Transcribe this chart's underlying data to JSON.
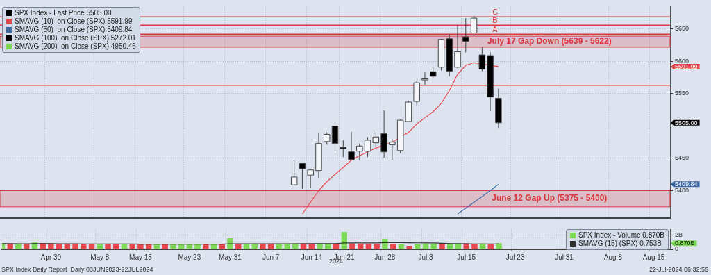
{
  "chart_data": [
    {
      "type": "candlestick",
      "series": [
        {
          "name": "SPX Index - Last Price 5505.00",
          "color": "#000000",
          "ohlc": [
            null,
            null,
            null,
            null,
            null,
            null,
            null,
            null,
            null,
            null,
            null,
            null,
            null,
            null,
            null,
            null,
            null,
            null,
            null,
            null,
            null,
            null,
            null,
            null,
            null,
            null,
            null,
            null,
            null,
            null,
            null,
            null,
            null,
            null,
            null,
            null,
            [
              5409,
              5447,
              5409,
              5421
            ],
            [
              5442,
              5442,
              5403,
              5434
            ],
            [
              5424,
              5432,
              5404,
              5432
            ],
            [
              5431,
              5489,
              5420,
              5473
            ],
            [
              5476,
              5490,
              5471,
              5487
            ],
            [
              5500,
              5506,
              5456,
              5473
            ],
            [
              5467,
              5478,
              5452,
              5465
            ],
            [
              5460,
              5491,
              5448,
              5448
            ],
            [
              5461,
              5473,
              5447,
              5469
            ],
            [
              5461,
              5483,
              5452,
              5478
            ],
            [
              5474,
              5491,
              5468,
              5483
            ],
            [
              5488,
              5524,
              5451,
              5460
            ],
            [
              5471,
              5480,
              5447,
              5475
            ],
            [
              5462,
              5510,
              5458,
              5509
            ],
            [
              5507,
              5539,
              5507,
              5537
            ],
            [
              5538,
              5570,
              5532,
              5567
            ],
            [
              5572,
              5583,
              5563,
              5573
            ],
            [
              5584,
              5591,
              5575,
              5577
            ],
            [
              5591,
              5635,
              5586,
              5634
            ],
            [
              5635,
              5642,
              5577,
              5585
            ],
            [
              5591,
              5656,
              5590,
              5615
            ],
            [
              5638,
              5667,
              5614,
              5631
            ],
            [
              5644,
              5670,
              5639,
              5667
            ],
            [
              5610,
              5622,
              5585,
              5588
            ],
            [
              5609,
              5614,
              5523,
              5545
            ],
            [
              5543,
              5558,
              5497,
              5505
            ],
            null,
            null,
            null,
            null,
            null,
            null,
            null,
            null,
            null,
            null,
            null,
            null,
            null,
            null,
            null,
            null,
            null,
            null,
            null,
            null,
            null
          ],
          "colors": [
            null,
            null,
            null,
            null,
            null,
            null,
            null,
            null,
            null,
            null,
            null,
            null,
            null,
            null,
            null,
            null,
            null,
            null,
            null,
            null,
            null,
            null,
            null,
            null,
            null,
            null,
            null,
            null,
            null,
            null,
            null,
            null,
            null,
            null,
            null,
            null,
            "#f4f6fa",
            "#000000",
            "#f4f6fa",
            "#f4f6fa",
            "#f4f6fa",
            "#000000",
            "#000000",
            "#000000",
            "#f4f6fa",
            "#f4f6fa",
            "#f4f6fa",
            "#000000",
            "#f4f6fa",
            "#f4f6fa",
            "#f4f6fa",
            "#f4f6fa",
            "#f4f6fa",
            "#000000",
            "#f4f6fa",
            "#000000",
            "#f4f6fa",
            "#000000",
            "#f4f6fa",
            "#000000",
            "#000000",
            "#000000",
            null,
            null,
            null,
            null,
            null,
            null,
            null,
            null,
            null,
            null,
            null,
            null,
            null,
            null,
            null,
            null,
            null,
            null,
            null,
            null,
            null
          ]
        },
        {
          "name": "SMAVG (10)  on Close (SPX) 5591.99",
          "type": "line",
          "color": "#e8484d",
          "values": [
            null,
            null,
            null,
            null,
            null,
            null,
            null,
            null,
            null,
            null,
            null,
            null,
            null,
            null,
            null,
            null,
            null,
            null,
            null,
            null,
            null,
            null,
            null,
            null,
            null,
            null,
            null,
            null,
            null,
            null,
            null,
            null,
            null,
            null,
            null,
            null,
            null,
            5364,
            5382,
            5400,
            5414,
            5425,
            5436,
            5447,
            5454,
            5460,
            5466,
            null,
            5475,
            null,
            5490,
            5503,
            5513,
            5522,
            5535,
            5555,
            5580,
            5594,
            5598,
            null,
            null,
            5591.99,
            null,
            null,
            null,
            null,
            null,
            null,
            null,
            null,
            null,
            null,
            null,
            null,
            null,
            null,
            null,
            null,
            null,
            null,
            null,
            null,
            null
          ]
        },
        {
          "name": "SMAVG (50)  on Close (SPX) 5409.84",
          "type": "line",
          "color": "#3d6aa6",
          "values": [
            null,
            null,
            null,
            null,
            null,
            null,
            null,
            null,
            null,
            null,
            null,
            null,
            null,
            null,
            null,
            null,
            null,
            null,
            null,
            null,
            null,
            null,
            null,
            null,
            null,
            null,
            null,
            null,
            null,
            null,
            null,
            null,
            null,
            null,
            null,
            null,
            null,
            null,
            null,
            null,
            null,
            null,
            null,
            null,
            null,
            null,
            null,
            null,
            null,
            null,
            null,
            null,
            null,
            null,
            null,
            null,
            5364,
            5373,
            5382,
            5391,
            5400,
            5409.84,
            null,
            null,
            null,
            null,
            null,
            null,
            null,
            null,
            null,
            null,
            null,
            null,
            null,
            null,
            null,
            null,
            null,
            null,
            null,
            null,
            null
          ]
        },
        {
          "name": "SMAVG (100)  on Close (SPX) 5272.01",
          "type": "line",
          "color": "#000000",
          "values": [
            null,
            null,
            null,
            null,
            null,
            null,
            null,
            null,
            null,
            null,
            null,
            null,
            null,
            null,
            null,
            null,
            null,
            null,
            null,
            null,
            null,
            null,
            null,
            null,
            null,
            null,
            null,
            null,
            null,
            null,
            null,
            null,
            null,
            null,
            null,
            null,
            null,
            null,
            null,
            null,
            null,
            null,
            null,
            null,
            null,
            null,
            null,
            null,
            null,
            null,
            null,
            null,
            null,
            null,
            null,
            null,
            null,
            null,
            null,
            null,
            null,
            null,
            null,
            null,
            null,
            null,
            null,
            null,
            null,
            null,
            null,
            null,
            null,
            null,
            null,
            null,
            null,
            null,
            null,
            null,
            null,
            null,
            null
          ]
        },
        {
          "name": "SMAVG (200)  on Close (SPX) 4950.46",
          "type": "line",
          "color": "#7ed957",
          "values": [
            null,
            null,
            null,
            null,
            null,
            null,
            null,
            null,
            null,
            null,
            null,
            null,
            null,
            null,
            null,
            null,
            null,
            null,
            null,
            null,
            null,
            null,
            null,
            null,
            null,
            null,
            null,
            null,
            null,
            null,
            null,
            null,
            null,
            null,
            null,
            null,
            null,
            null,
            null,
            null,
            null,
            null,
            null,
            null,
            null,
            null,
            null,
            null,
            null,
            null,
            null,
            null,
            null,
            null,
            null,
            null,
            null,
            null,
            null,
            null,
            null,
            null,
            null,
            null,
            null,
            null,
            null,
            null,
            null,
            null,
            null,
            null,
            null,
            null,
            null,
            null,
            null,
            null,
            null,
            null,
            null,
            null,
            null
          ]
        }
      ],
      "ylim": [
        5358,
        5686
      ],
      "yticks": [
        5400,
        {
          "value": 5409.84,
          "label": "5409.84"
        },
        5450,
        {
          "value": 5500,
          "label": null
        },
        {
          "value": 5505,
          "label": "5505.00"
        },
        5550,
        {
          "value": 5591.99,
          "label": "5591.99"
        },
        5600,
        5650
      ],
      "grid": true,
      "legend": "top left",
      "marker": "none",
      "tick_labels": "y",
      "ref_lines": [
        {
          "axis": "y",
          "value": 5563,
          "color": "#d9383e"
        },
        {
          "axis": "y",
          "value": 5642,
          "label": "A",
          "color": "#d9383e"
        },
        {
          "axis": "y",
          "value": 5656,
          "label": "B",
          "color": "#d9383e"
        },
        {
          "axis": "y",
          "value": 5669,
          "label": "C",
          "color": "#d9383e"
        }
      ],
      "bands": [
        {
          "axis": "y",
          "from": 5622,
          "to": 5639,
          "label": "July 17 Gap Down (5639 - 5622)",
          "color": "#d9383e"
        },
        {
          "axis": "y",
          "from": 5375,
          "to": 5400,
          "label": "June 12 Gap Up (5375 - 5400)",
          "color": "#d9383e"
        }
      ]
    },
    {
      "type": "bar",
      "categories": [
        null,
        null,
        null,
        null,
        null,
        null,
        "Apr 30",
        null,
        null,
        null,
        null,
        null,
        "May 8",
        null,
        null,
        null,
        null,
        "May 15",
        null,
        null,
        null,
        null,
        null,
        "May 23",
        null,
        null,
        null,
        null,
        "May 31",
        null,
        null,
        null,
        null,
        "Jun 7",
        null,
        null,
        null,
        null,
        "Jun 14",
        null,
        null,
        null,
        "Jun 21",
        null,
        null,
        null,
        null,
        "Jun 28",
        null,
        null,
        null,
        null,
        "Jul 8",
        null,
        null,
        null,
        null,
        "Jul 15",
        null,
        null,
        null,
        null,
        null,
        "Jul 23",
        null,
        null,
        null,
        null,
        null,
        "Jul 31",
        null,
        null,
        null,
        null,
        null,
        "Aug 8",
        null,
        null,
        null,
        null,
        "Aug 15",
        null,
        null
      ],
      "series": [
        {
          "name": "SPX Index - Volume 0.870B",
          "color": "#7ed957",
          "values": [
            0.85,
            0.75,
            0.8,
            0.8,
            1.0,
            0.9,
            0.85,
            0.8,
            0.8,
            0.75,
            0.7,
            0.7,
            0.75,
            0.7,
            0.7,
            0.7,
            0.75,
            0.75,
            0.7,
            0.7,
            0.75,
            0.7,
            0.7,
            0.75,
            0.75,
            0.8,
            0.75,
            0.7,
            1.6,
            0.75,
            0.75,
            0.8,
            0.8,
            0.8,
            0.75,
            0.8,
            0.85,
            0.8,
            0.75,
            0.85,
            0.8,
            0.8,
            2.5,
            0.85,
            0.8,
            0.75,
            0.75,
            1.5,
            0.75,
            0.7,
            0.5,
            0.7,
            0.8,
            0.8,
            0.9,
            0.8,
            0.8,
            0.85,
            0.75,
            0.85,
            0.8,
            0.87,
            null,
            null,
            null,
            null,
            null,
            null,
            null,
            null,
            null,
            null,
            null,
            null,
            null,
            null,
            null,
            null,
            null,
            null,
            null,
            null,
            null
          ],
          "colors": [
            "#7ed957",
            "#e8484d",
            "#7ed957",
            "#e8484d",
            "#7ed957",
            "#e8484d",
            "#e8484d",
            "#e8484d",
            "#e8484d",
            "#e8484d",
            "#e8484d",
            "#e8484d",
            "#7ed957",
            "#e8484d",
            "#e8484d",
            "#7ed957",
            "#e8484d",
            "#e8484d",
            "#e8484d",
            "#7ed957",
            "#e8484d",
            "#7ed957",
            "#7ed957",
            "#7ed957",
            "#7ed957",
            "#e8484d",
            "#7ed957",
            "#e8484d",
            "#7ed957",
            "#e8484d",
            "#7ed957",
            "#7ed957",
            "#e8484d",
            "#e8484d",
            "#7ed957",
            "#7ed957",
            "#7ed957",
            "#e8484d",
            "#e8484d",
            "#7ed957",
            "#7ed957",
            "#e8484d",
            "#7ed957",
            "#e8484d",
            "#e8484d",
            "#e8484d",
            "#e8484d",
            "#7ed957",
            "#e8484d",
            "#7ed957",
            "#e8484d",
            "#7ed957",
            "#7ed957",
            "#7ed957",
            "#e8484d",
            "#7ed957",
            "#7ed957",
            "#e8484d",
            "#e8484d",
            "#7ed957",
            "#e8484d",
            "#7ed957",
            null,
            null,
            null,
            null,
            null,
            null,
            null,
            null,
            null,
            null,
            null,
            null,
            null,
            null,
            null,
            null,
            null,
            null,
            null,
            null,
            null
          ]
        },
        {
          "name": "SMAVG (15) (SPX) 0.753B",
          "type": "line",
          "color": "#333333",
          "values": [
            0.8,
            0.8,
            0.79,
            0.79,
            0.8,
            0.8,
            0.8,
            0.79,
            0.79,
            0.78,
            0.77,
            0.77,
            0.76,
            0.76,
            0.75,
            0.75,
            0.75,
            0.74,
            0.74,
            0.73,
            0.73,
            0.73,
            0.73,
            0.73,
            0.73,
            0.73,
            0.73,
            0.73,
            0.78,
            0.78,
            0.78,
            0.78,
            0.78,
            0.78,
            0.79,
            0.79,
            0.79,
            0.8,
            0.8,
            0.8,
            0.8,
            0.8,
            0.9,
            0.9,
            0.9,
            0.9,
            0.9,
            0.95,
            0.95,
            0.95,
            0.93,
            0.92,
            0.9,
            0.9,
            0.85,
            0.8,
            0.8,
            0.78,
            0.76,
            0.75,
            0.75,
            0.753,
            null,
            null,
            null,
            null,
            null,
            null,
            null,
            null,
            null,
            null,
            null,
            null,
            null,
            null,
            null,
            null,
            null,
            null,
            null,
            null,
            null
          ]
        }
      ],
      "ylim": [
        0,
        2.85
      ],
      "yticks": [
        0,
        {
          "value": 0.87,
          "label": "0.870B"
        },
        {
          "value": 2,
          "label": "2B"
        }
      ],
      "grid": true,
      "legend": "right",
      "marker": "none",
      "annotations": [
        "2024",
        "SPX Index Daily Report  Daily 03JUN2023-22JUL2024",
        "22-Jul-2024 06:32:56"
      ]
    }
  ]
}
